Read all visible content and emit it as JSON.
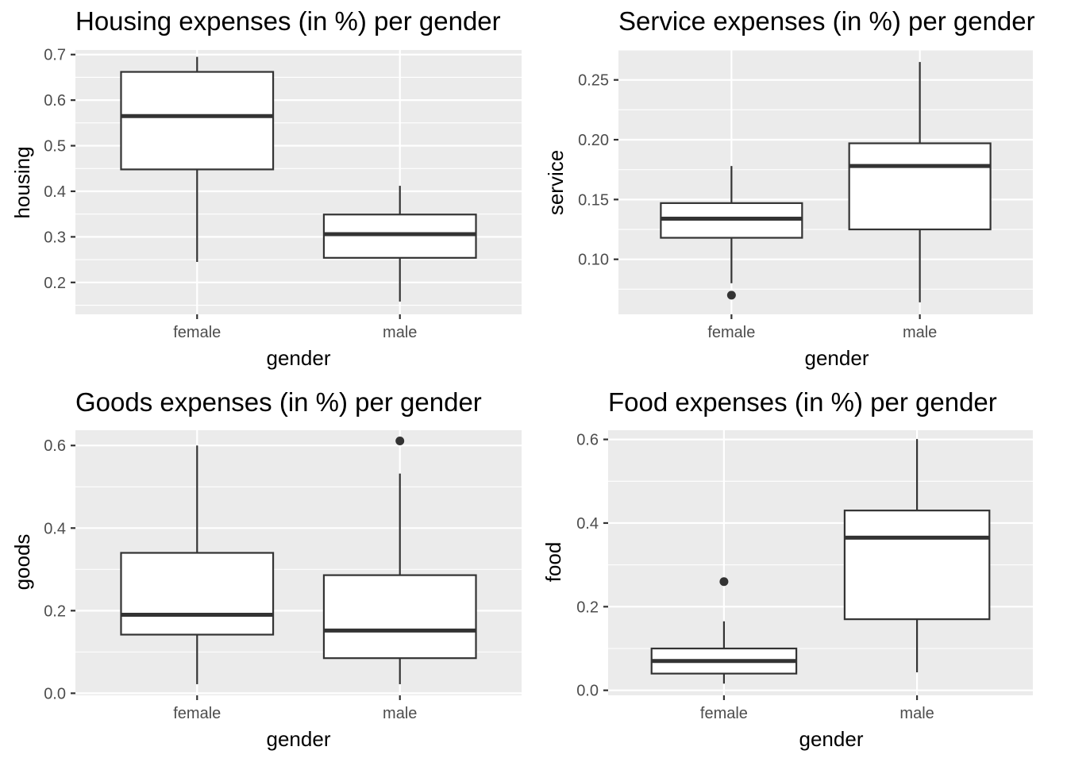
{
  "chart_data": [
    {
      "type": "box",
      "title": "Housing expenses (in %) per gender",
      "xlabel": "gender",
      "ylabel": "housing",
      "ylim": [
        0.13,
        0.71
      ],
      "yticks": [
        0.2,
        0.3,
        0.4,
        0.5,
        0.6,
        0.7
      ],
      "ytick_labels": [
        "0.2",
        "0.3",
        "0.4",
        "0.5",
        "0.6",
        "0.7"
      ],
      "grid": true,
      "categories": [
        "female",
        "male"
      ],
      "boxes": [
        {
          "category": "female",
          "whisker_low": 0.245,
          "q1": 0.448,
          "median": 0.565,
          "q3": 0.662,
          "whisker_high": 0.695,
          "outliers": []
        },
        {
          "category": "male",
          "whisker_low": 0.158,
          "q1": 0.254,
          "median": 0.306,
          "q3": 0.349,
          "whisker_high": 0.412,
          "outliers": []
        }
      ]
    },
    {
      "type": "box",
      "title": "Service expenses (in %) per gender",
      "xlabel": "gender",
      "ylabel": "service",
      "ylim": [
        0.054,
        0.275
      ],
      "yticks": [
        0.1,
        0.15,
        0.2,
        0.25
      ],
      "ytick_labels": [
        "0.10",
        "0.15",
        "0.20",
        "0.25"
      ],
      "grid": true,
      "categories": [
        "female",
        "male"
      ],
      "boxes": [
        {
          "category": "female",
          "whisker_low": 0.08,
          "q1": 0.118,
          "median": 0.134,
          "q3": 0.147,
          "whisker_high": 0.178,
          "outliers": [
            0.07
          ]
        },
        {
          "category": "male",
          "whisker_low": 0.064,
          "q1": 0.125,
          "median": 0.178,
          "q3": 0.197,
          "whisker_high": 0.265,
          "outliers": []
        }
      ]
    },
    {
      "type": "box",
      "title": "Goods expenses (in %) per gender",
      "xlabel": "gender",
      "ylabel": "goods",
      "ylim": [
        -0.005,
        0.637
      ],
      "yticks": [
        0.0,
        0.2,
        0.4,
        0.6
      ],
      "ytick_labels": [
        "0.0",
        "0.2",
        "0.4",
        "0.6"
      ],
      "grid": true,
      "categories": [
        "female",
        "male"
      ],
      "boxes": [
        {
          "category": "female",
          "whisker_low": 0.022,
          "q1": 0.142,
          "median": 0.19,
          "q3": 0.34,
          "whisker_high": 0.6,
          "outliers": []
        },
        {
          "category": "male",
          "whisker_low": 0.022,
          "q1": 0.085,
          "median": 0.152,
          "q3": 0.286,
          "whisker_high": 0.532,
          "outliers": [
            0.611
          ]
        }
      ]
    },
    {
      "type": "box",
      "title": "Food expenses (in %) per gender",
      "xlabel": "gender",
      "ylabel": "food",
      "ylim": [
        -0.012,
        0.622
      ],
      "yticks": [
        0.0,
        0.2,
        0.4,
        0.6
      ],
      "ytick_labels": [
        "0.0",
        "0.2",
        "0.4",
        "0.6"
      ],
      "grid": true,
      "categories": [
        "female",
        "male"
      ],
      "boxes": [
        {
          "category": "female",
          "whisker_low": 0.016,
          "q1": 0.04,
          "median": 0.07,
          "q3": 0.1,
          "whisker_high": 0.165,
          "outliers": [
            0.26
          ]
        },
        {
          "category": "male",
          "whisker_low": 0.043,
          "q1": 0.17,
          "median": 0.365,
          "q3": 0.43,
          "whisker_high": 0.601,
          "outliers": []
        }
      ]
    }
  ]
}
